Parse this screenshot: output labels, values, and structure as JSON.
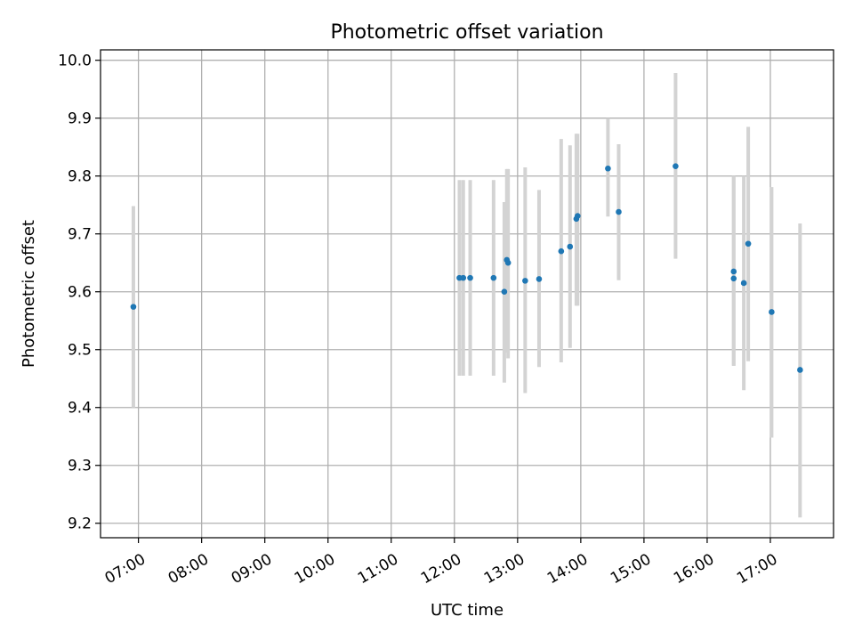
{
  "chart_data": {
    "type": "scatter",
    "title": "Photometric offset variation",
    "xlabel": "UTC time",
    "ylabel": "Photometric offset",
    "x_unit": "hours",
    "xlim": [
      6.4,
      18.0
    ],
    "ylim": [
      9.175,
      10.018
    ],
    "grid": true,
    "x_ticks": [
      {
        "value": 7,
        "label": "07:00"
      },
      {
        "value": 8,
        "label": "08:00"
      },
      {
        "value": 9,
        "label": "09:00"
      },
      {
        "value": 10,
        "label": "10:00"
      },
      {
        "value": 11,
        "label": "11:00"
      },
      {
        "value": 12,
        "label": "12:00"
      },
      {
        "value": 13,
        "label": "13:00"
      },
      {
        "value": 14,
        "label": "14:00"
      },
      {
        "value": 15,
        "label": "15:00"
      },
      {
        "value": 16,
        "label": "16:00"
      },
      {
        "value": 17,
        "label": "17:00"
      }
    ],
    "y_ticks": [
      {
        "value": 9.2,
        "label": "9.2"
      },
      {
        "value": 9.3,
        "label": "9.3"
      },
      {
        "value": 9.4,
        "label": "9.4"
      },
      {
        "value": 9.5,
        "label": "9.5"
      },
      {
        "value": 9.6,
        "label": "9.6"
      },
      {
        "value": 9.7,
        "label": "9.7"
      },
      {
        "value": 9.8,
        "label": "9.8"
      },
      {
        "value": 9.9,
        "label": "9.9"
      },
      {
        "value": 10.0,
        "label": "10.0"
      }
    ],
    "point_color": "#1f77b4",
    "errorbar_color": "#d3d3d3",
    "points": [
      {
        "x": 6.92,
        "y": 9.574,
        "err_low": 9.4,
        "err_high": 9.748
      },
      {
        "x": 12.08,
        "y": 9.624,
        "err_low": 9.455,
        "err_high": 9.793
      },
      {
        "x": 12.14,
        "y": 9.624,
        "err_low": 9.455,
        "err_high": 9.793
      },
      {
        "x": 12.25,
        "y": 9.624,
        "err_low": 9.455,
        "err_high": 9.793
      },
      {
        "x": 12.62,
        "y": 9.624,
        "err_low": 9.455,
        "err_high": 9.793
      },
      {
        "x": 12.79,
        "y": 9.6,
        "err_low": 9.443,
        "err_high": 9.755
      },
      {
        "x": 12.83,
        "y": 9.655,
        "err_low": 9.495,
        "err_high": 9.812
      },
      {
        "x": 12.85,
        "y": 9.65,
        "err_low": 9.485,
        "err_high": 9.812
      },
      {
        "x": 13.12,
        "y": 9.619,
        "err_low": 9.425,
        "err_high": 9.815
      },
      {
        "x": 13.34,
        "y": 9.622,
        "err_low": 9.47,
        "err_high": 9.776
      },
      {
        "x": 13.69,
        "y": 9.67,
        "err_low": 9.478,
        "err_high": 9.864
      },
      {
        "x": 13.83,
        "y": 9.678,
        "err_low": 9.503,
        "err_high": 9.853
      },
      {
        "x": 13.93,
        "y": 9.726,
        "err_low": 9.576,
        "err_high": 9.873
      },
      {
        "x": 13.95,
        "y": 9.731,
        "err_low": 9.576,
        "err_high": 9.873
      },
      {
        "x": 14.43,
        "y": 9.813,
        "err_low": 9.73,
        "err_high": 9.9
      },
      {
        "x": 14.6,
        "y": 9.738,
        "err_low": 9.62,
        "err_high": 9.855
      },
      {
        "x": 15.5,
        "y": 9.817,
        "err_low": 9.657,
        "err_high": 9.978
      },
      {
        "x": 16.42,
        "y": 9.635,
        "err_low": 9.472,
        "err_high": 9.8
      },
      {
        "x": 16.42,
        "y": 9.623,
        "err_low": 9.472,
        "err_high": 9.8
      },
      {
        "x": 16.58,
        "y": 9.615,
        "err_low": 9.43,
        "err_high": 9.8
      },
      {
        "x": 16.65,
        "y": 9.683,
        "err_low": 9.48,
        "err_high": 9.885
      },
      {
        "x": 17.02,
        "y": 9.565,
        "err_low": 9.348,
        "err_high": 9.781
      },
      {
        "x": 17.47,
        "y": 9.465,
        "err_low": 9.21,
        "err_high": 9.718
      }
    ]
  }
}
